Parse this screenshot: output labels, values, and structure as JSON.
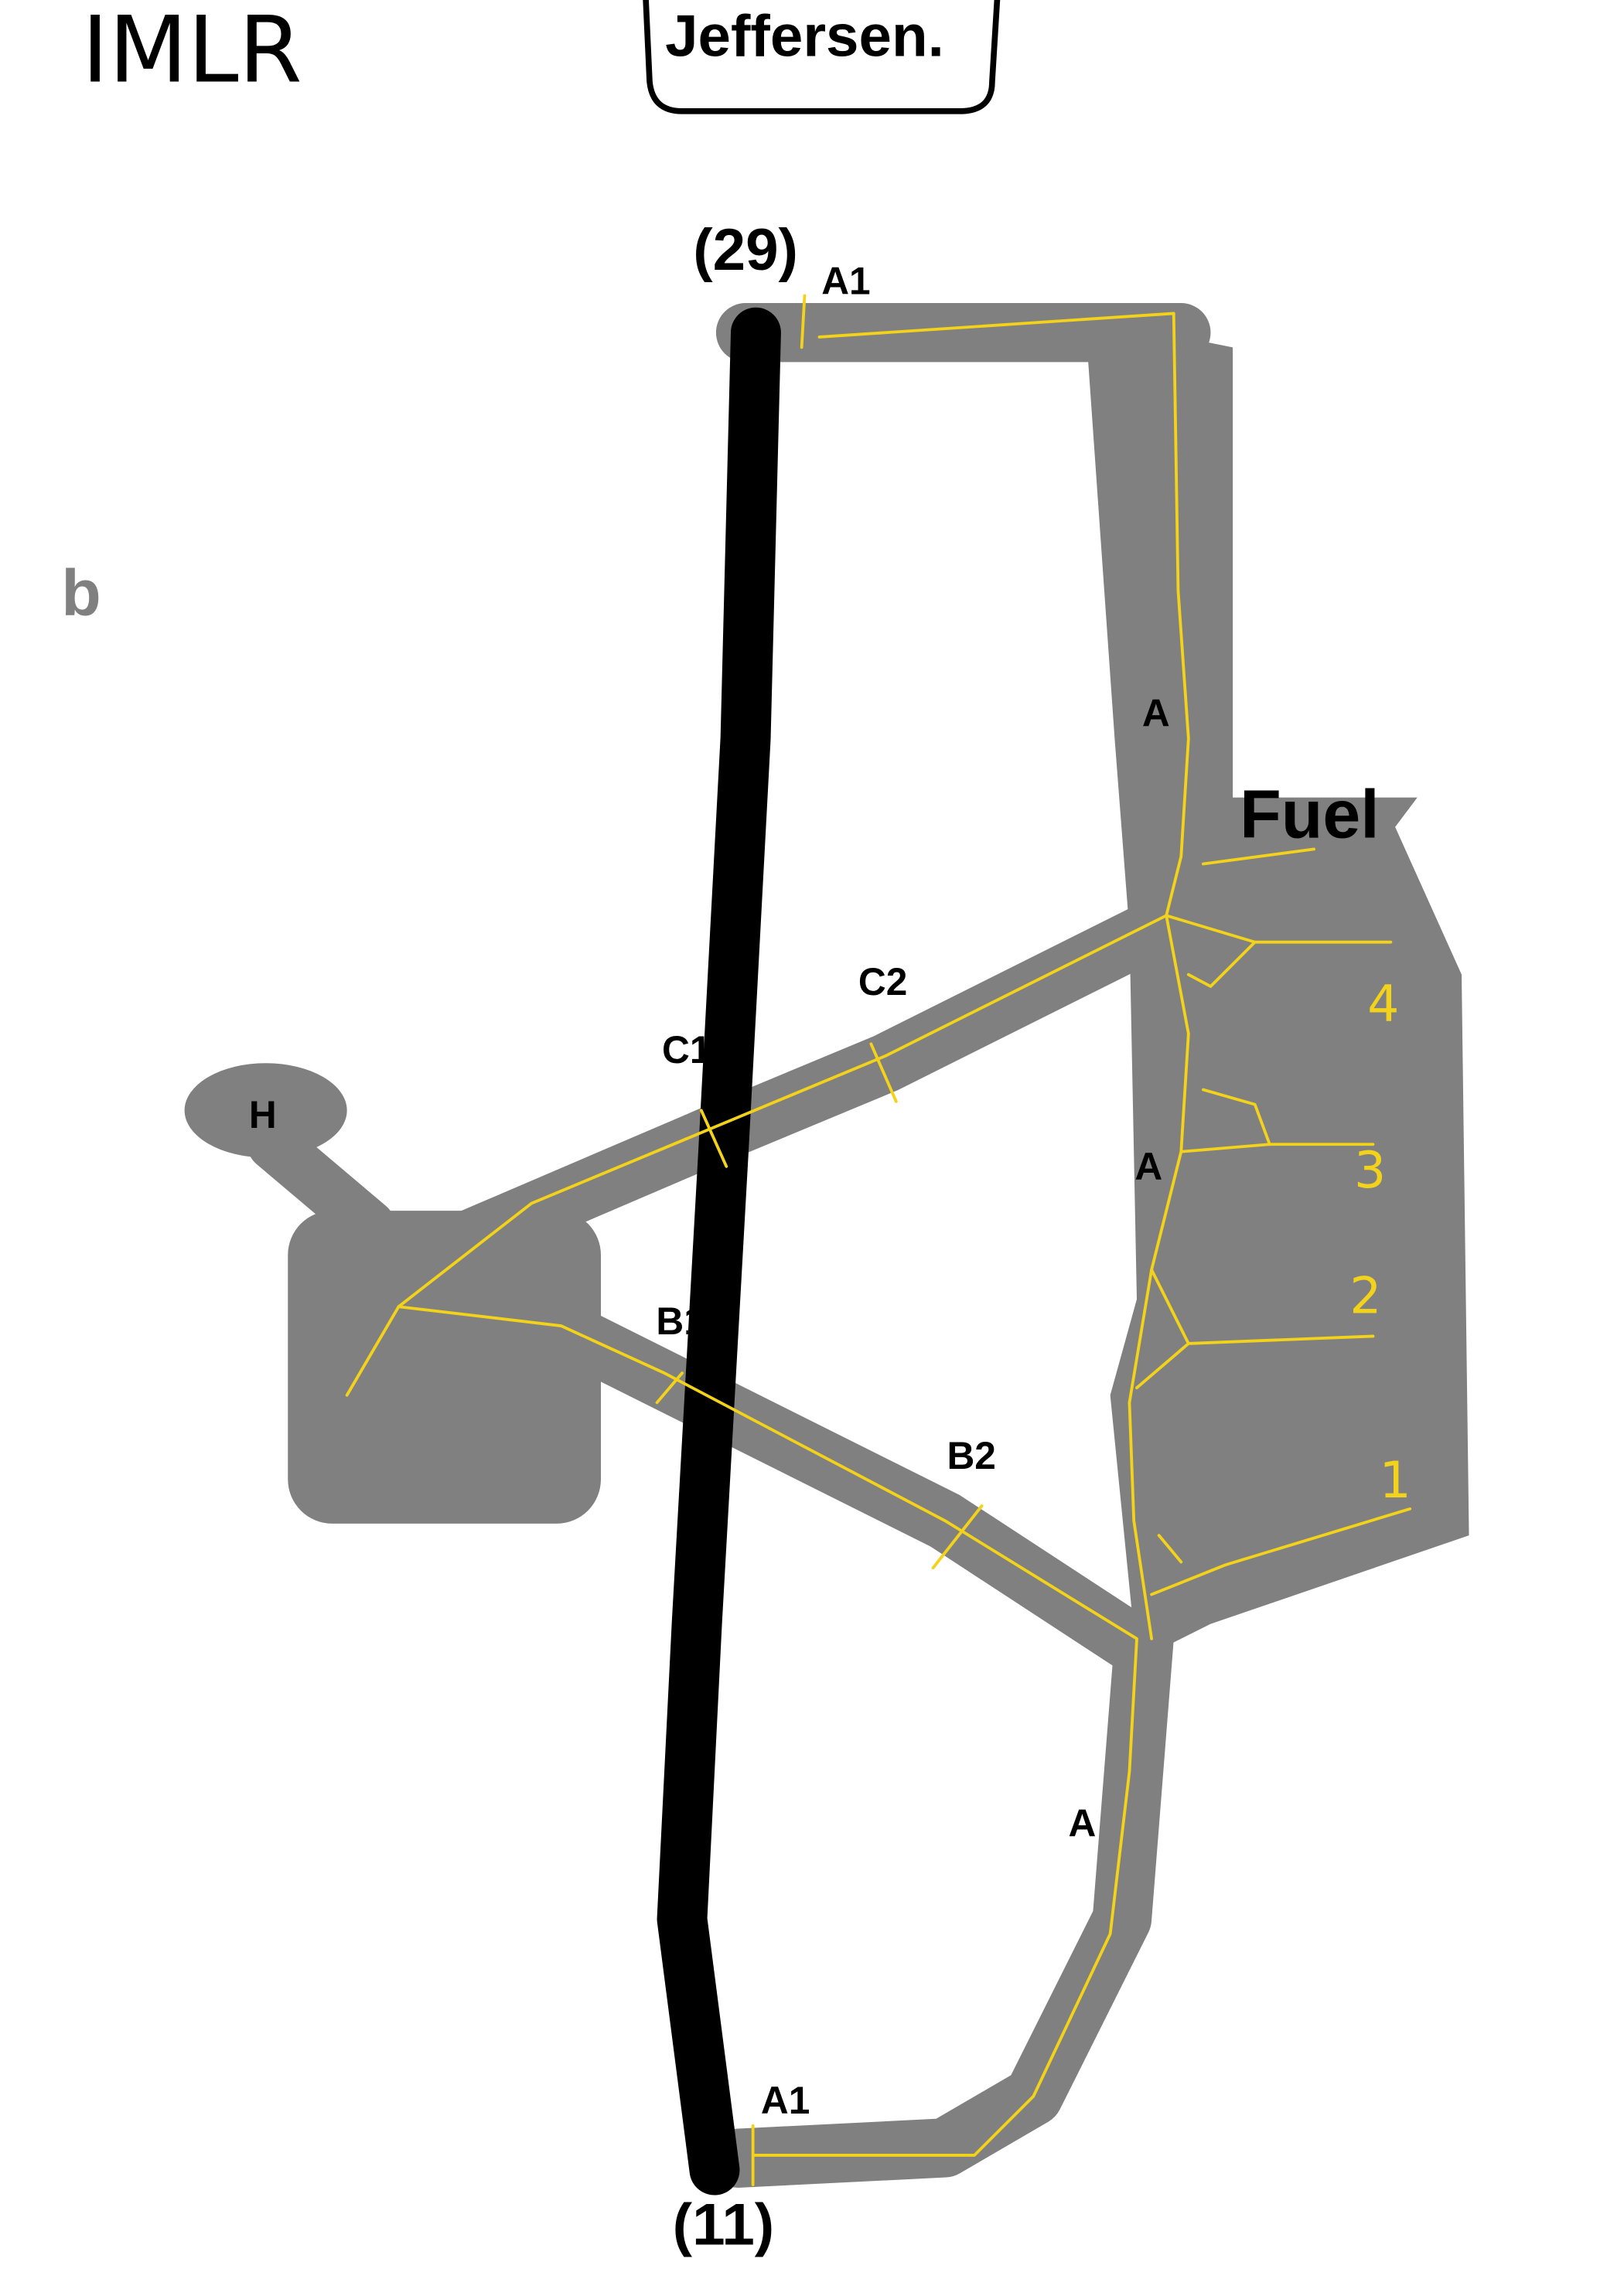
{
  "header": {
    "code": "IMLR",
    "name": "Jeffersen."
  },
  "panel": "b",
  "runway": {
    "end_top": "(29)",
    "end_bottom": "(11)"
  },
  "taxiways": {
    "a1_top": "A1",
    "a_upper": "A",
    "c2": "C2",
    "c1": "C1",
    "a_middle": "A",
    "b1": "B1",
    "b2": "B2",
    "a_lower": "A",
    "a1_bottom": "A1"
  },
  "areas": {
    "fuel": "Fuel",
    "helipad": "H"
  },
  "stands": [
    "4",
    "3",
    "2",
    "1"
  ]
}
